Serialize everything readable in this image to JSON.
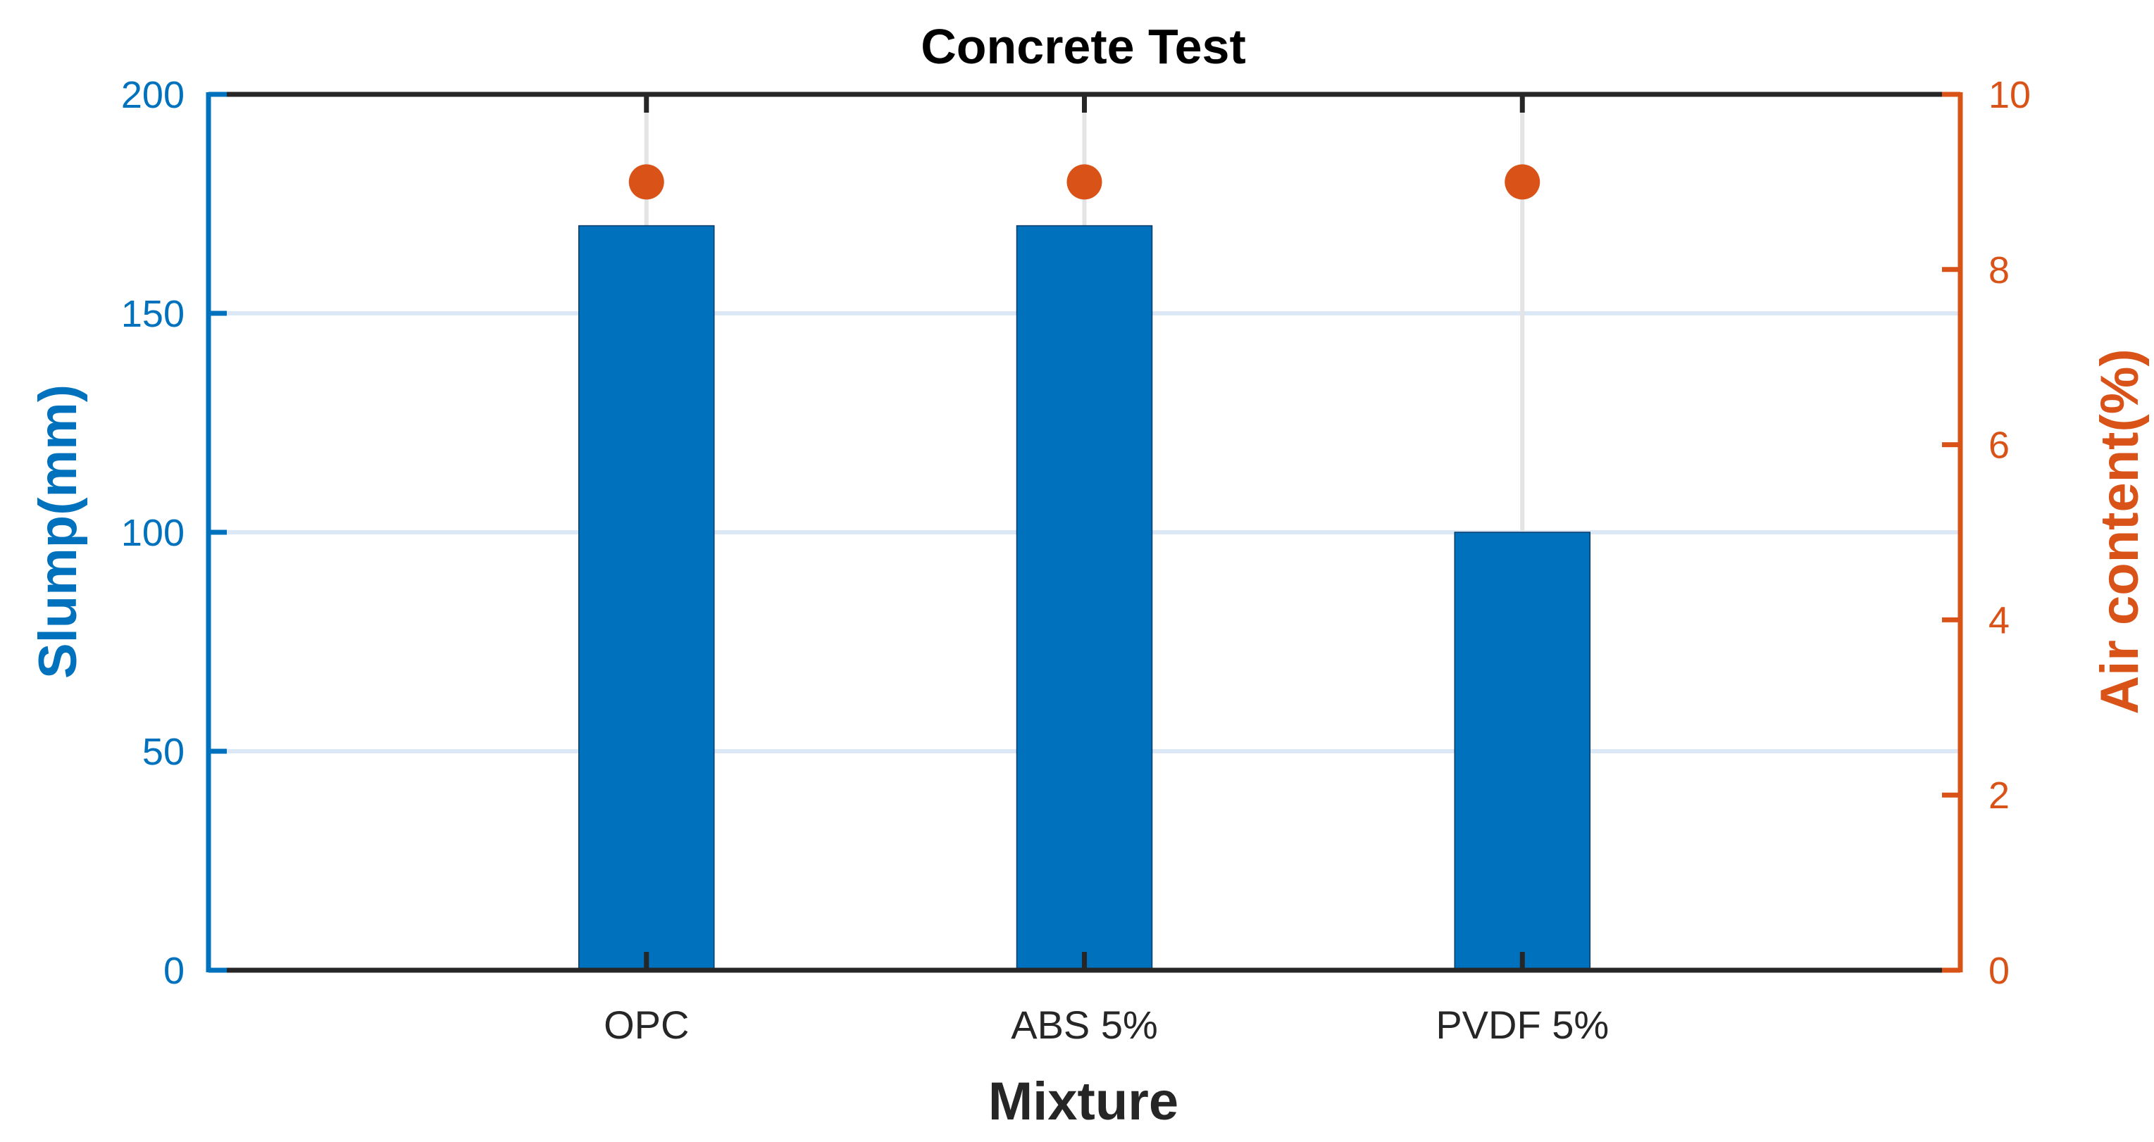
{
  "chart_data": {
    "type": "bar",
    "title": "Concrete Test",
    "xlabel": "Mixture",
    "categories": [
      "OPC",
      "ABS 5%",
      "PVDF 5%"
    ],
    "left_axis": {
      "label": "Slump(mm)",
      "ylim": [
        0,
        200
      ],
      "ticks": [
        "0",
        "50",
        "100",
        "150",
        "200"
      ],
      "color": "#0072BD"
    },
    "right_axis": {
      "label": "Air content(%)",
      "ylim": [
        0,
        10
      ],
      "ticks": [
        "0",
        "2",
        "4",
        "6",
        "8",
        "10"
      ],
      "color": "#D95319"
    },
    "series": [
      {
        "type": "bar",
        "axis": "left",
        "values": [
          170,
          170,
          100
        ],
        "color": "#0072BD"
      },
      {
        "type": "scatter",
        "axis": "right",
        "values": [
          9,
          9,
          9
        ],
        "color": "#D95319"
      }
    ],
    "grid": "horizontal (left axis) and vertical at categories",
    "grid_color": "#DCE8F5"
  }
}
